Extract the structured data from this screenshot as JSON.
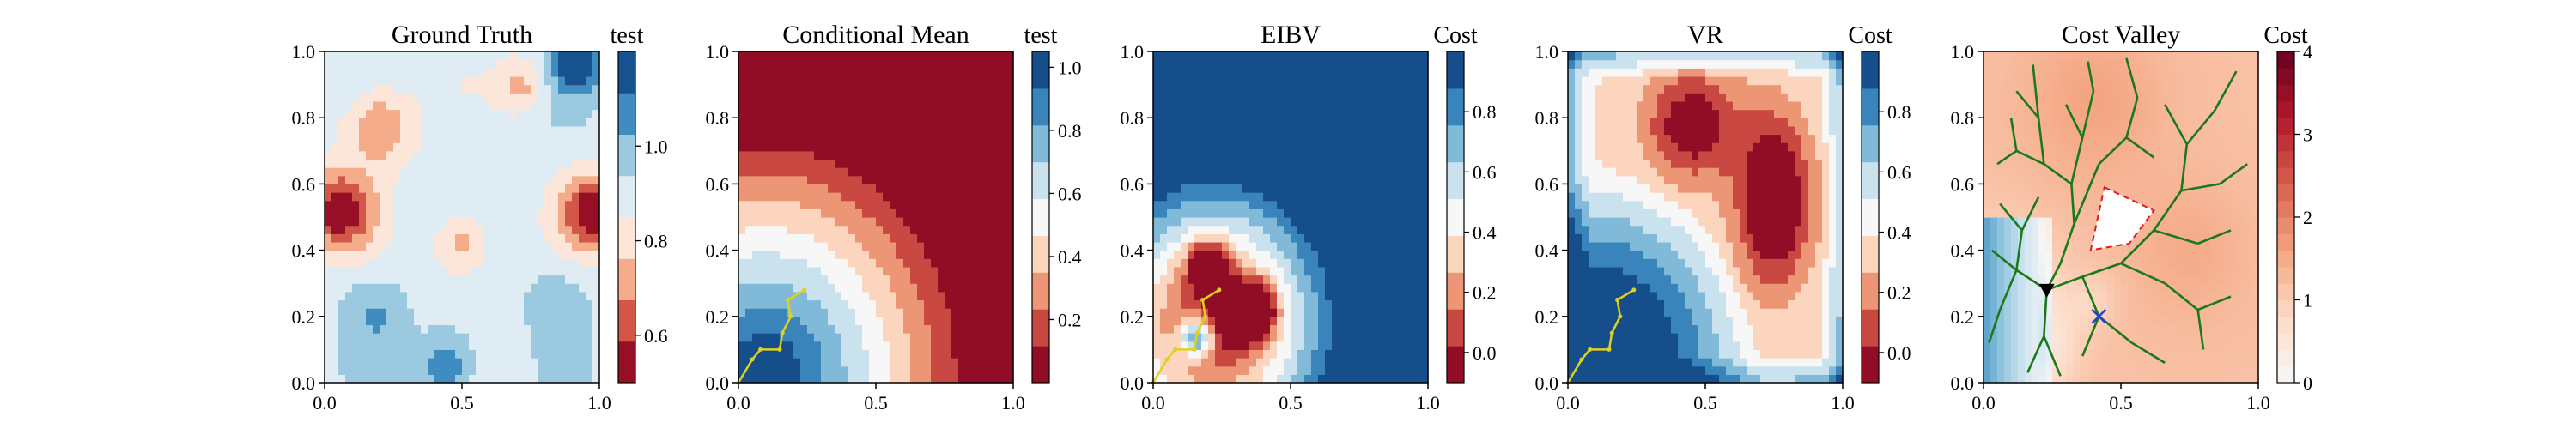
{
  "chart_data": [
    {
      "type": "heatmap",
      "title": "Ground Truth",
      "colorbar_label": "test",
      "colormap": "RdBu",
      "colorbar_ticks": [
        "0.6",
        "0.8",
        "1.0"
      ],
      "colorbar_ticks_values": [
        0.6,
        0.8,
        1.0
      ],
      "colorbar_range": [
        0.5,
        1.2
      ],
      "levels": 8,
      "xlim": [
        0.0,
        1.0
      ],
      "ylim": [
        0.0,
        1.0
      ],
      "xticks": [
        "0.0",
        "0.5",
        "1.0"
      ],
      "yticks": [
        "0.0",
        "0.2",
        "0.4",
        "0.6",
        "0.8",
        "1.0"
      ],
      "field": "ground_truth",
      "path": []
    },
    {
      "type": "heatmap",
      "title": "Conditional Mean",
      "colorbar_label": "test",
      "colormap": "RdBu",
      "colorbar_ticks": [
        "0.2",
        "0.4",
        "0.6",
        "0.8",
        "1.0"
      ],
      "colorbar_ticks_values": [
        0.2,
        0.4,
        0.6,
        0.8,
        1.0
      ],
      "colorbar_range": [
        0.0,
        1.05
      ],
      "levels": 9,
      "xlim": [
        0.0,
        1.0
      ],
      "ylim": [
        0.0,
        1.0
      ],
      "xticks": [
        "0.0",
        "0.5",
        "1.0"
      ],
      "yticks": [
        "0.0",
        "0.2",
        "0.4",
        "0.6",
        "0.8",
        "1.0"
      ],
      "field": "conditional_mean",
      "path": [
        [
          0.0,
          0.0
        ],
        [
          0.05,
          0.07
        ],
        [
          0.08,
          0.1
        ],
        [
          0.15,
          0.1
        ],
        [
          0.16,
          0.15
        ],
        [
          0.19,
          0.2
        ],
        [
          0.18,
          0.25
        ],
        [
          0.24,
          0.28
        ]
      ]
    },
    {
      "type": "heatmap",
      "title": "EIBV",
      "colorbar_label": "Cost",
      "colormap": "RdBu",
      "colorbar_ticks": [
        "0.0",
        "0.2",
        "0.4",
        "0.6",
        "0.8"
      ],
      "colorbar_ticks_values": [
        0.0,
        0.2,
        0.4,
        0.6,
        0.8
      ],
      "colorbar_range": [
        -0.1,
        1.0
      ],
      "levels": 9,
      "xlim": [
        0.0,
        1.0
      ],
      "ylim": [
        0.0,
        1.0
      ],
      "xticks": [
        "0.0",
        "0.5",
        "1.0"
      ],
      "yticks": [
        "0.0",
        "0.2",
        "0.4",
        "0.6",
        "0.8",
        "1.0"
      ],
      "field": "eibv",
      "path": [
        [
          0.0,
          0.0
        ],
        [
          0.05,
          0.07
        ],
        [
          0.08,
          0.1
        ],
        [
          0.15,
          0.1
        ],
        [
          0.16,
          0.15
        ],
        [
          0.19,
          0.2
        ],
        [
          0.18,
          0.25
        ],
        [
          0.24,
          0.28
        ]
      ]
    },
    {
      "type": "heatmap",
      "title": "VR",
      "colorbar_label": "Cost",
      "colormap": "RdBu",
      "colorbar_ticks": [
        "0.0",
        "0.2",
        "0.4",
        "0.6",
        "0.8"
      ],
      "colorbar_ticks_values": [
        0.0,
        0.2,
        0.4,
        0.6,
        0.8
      ],
      "colorbar_range": [
        -0.1,
        1.0
      ],
      "levels": 9,
      "xlim": [
        0.0,
        1.0
      ],
      "ylim": [
        0.0,
        1.0
      ],
      "xticks": [
        "0.0",
        "0.5",
        "1.0"
      ],
      "yticks": [
        "0.0",
        "0.2",
        "0.4",
        "0.6",
        "0.8",
        "1.0"
      ],
      "field": "vr",
      "path": [
        [
          0.0,
          0.0
        ],
        [
          0.05,
          0.07
        ],
        [
          0.08,
          0.1
        ],
        [
          0.15,
          0.1
        ],
        [
          0.16,
          0.15
        ],
        [
          0.19,
          0.2
        ],
        [
          0.18,
          0.25
        ],
        [
          0.24,
          0.28
        ]
      ]
    },
    {
      "type": "heatmap",
      "title": "Cost Valley",
      "colorbar_label": "Cost",
      "colormap": "RdBu",
      "colorbar_ticks": [
        "0",
        "1",
        "2",
        "3",
        "4"
      ],
      "colorbar_ticks_values": [
        0,
        1,
        2,
        3,
        4
      ],
      "colorbar_range": [
        0.0,
        4.0
      ],
      "levels": 20,
      "xlim": [
        0.0,
        1.0
      ],
      "ylim": [
        0.0,
        1.0
      ],
      "xticks": [
        "0.0",
        "0.5",
        "1.0"
      ],
      "yticks": [
        "0.0",
        "0.2",
        "0.4",
        "0.6",
        "0.8",
        "1.0"
      ],
      "field": "cost_valley",
      "current_location": [
        0.23,
        0.28
      ],
      "next_target": [
        0.42,
        0.2
      ],
      "obstacle_polygon": [
        [
          0.44,
          0.59
        ],
        [
          0.62,
          0.52
        ],
        [
          0.53,
          0.42
        ],
        [
          0.39,
          0.4
        ]
      ],
      "rrt_edges": [
        [
          [
            0.23,
            0.28
          ],
          [
            0.28,
            0.36
          ]
        ],
        [
          [
            0.28,
            0.36
          ],
          [
            0.33,
            0.48
          ]
        ],
        [
          [
            0.33,
            0.48
          ],
          [
            0.32,
            0.6
          ]
        ],
        [
          [
            0.32,
            0.6
          ],
          [
            0.22,
            0.66
          ]
        ],
        [
          [
            0.22,
            0.66
          ],
          [
            0.12,
            0.7
          ]
        ],
        [
          [
            0.12,
            0.7
          ],
          [
            0.05,
            0.66
          ]
        ],
        [
          [
            0.12,
            0.7
          ],
          [
            0.1,
            0.8
          ]
        ],
        [
          [
            0.22,
            0.66
          ],
          [
            0.2,
            0.8
          ]
        ],
        [
          [
            0.2,
            0.8
          ],
          [
            0.12,
            0.88
          ]
        ],
        [
          [
            0.2,
            0.8
          ],
          [
            0.18,
            0.96
          ]
        ],
        [
          [
            0.32,
            0.6
          ],
          [
            0.36,
            0.74
          ]
        ],
        [
          [
            0.36,
            0.74
          ],
          [
            0.3,
            0.84
          ]
        ],
        [
          [
            0.36,
            0.74
          ],
          [
            0.4,
            0.88
          ]
        ],
        [
          [
            0.4,
            0.88
          ],
          [
            0.38,
            0.97
          ]
        ],
        [
          [
            0.33,
            0.48
          ],
          [
            0.42,
            0.66
          ]
        ],
        [
          [
            0.42,
            0.66
          ],
          [
            0.52,
            0.74
          ]
        ],
        [
          [
            0.52,
            0.74
          ],
          [
            0.56,
            0.86
          ]
        ],
        [
          [
            0.56,
            0.86
          ],
          [
            0.52,
            0.98
          ]
        ],
        [
          [
            0.52,
            0.74
          ],
          [
            0.62,
            0.68
          ]
        ],
        [
          [
            0.23,
            0.28
          ],
          [
            0.36,
            0.32
          ]
        ],
        [
          [
            0.36,
            0.32
          ],
          [
            0.5,
            0.36
          ]
        ],
        [
          [
            0.5,
            0.36
          ],
          [
            0.62,
            0.46
          ]
        ],
        [
          [
            0.62,
            0.46
          ],
          [
            0.72,
            0.58
          ]
        ],
        [
          [
            0.72,
            0.58
          ],
          [
            0.74,
            0.72
          ]
        ],
        [
          [
            0.74,
            0.72
          ],
          [
            0.66,
            0.84
          ]
        ],
        [
          [
            0.74,
            0.72
          ],
          [
            0.84,
            0.82
          ]
        ],
        [
          [
            0.84,
            0.82
          ],
          [
            0.92,
            0.94
          ]
        ],
        [
          [
            0.72,
            0.58
          ],
          [
            0.86,
            0.6
          ]
        ],
        [
          [
            0.86,
            0.6
          ],
          [
            0.96,
            0.66
          ]
        ],
        [
          [
            0.62,
            0.46
          ],
          [
            0.78,
            0.42
          ]
        ],
        [
          [
            0.78,
            0.42
          ],
          [
            0.9,
            0.46
          ]
        ],
        [
          [
            0.5,
            0.36
          ],
          [
            0.66,
            0.3
          ]
        ],
        [
          [
            0.66,
            0.3
          ],
          [
            0.78,
            0.22
          ]
        ],
        [
          [
            0.78,
            0.22
          ],
          [
            0.9,
            0.26
          ]
        ],
        [
          [
            0.78,
            0.22
          ],
          [
            0.8,
            0.1
          ]
        ],
        [
          [
            0.36,
            0.32
          ],
          [
            0.42,
            0.2
          ]
        ],
        [
          [
            0.42,
            0.2
          ],
          [
            0.54,
            0.12
          ]
        ],
        [
          [
            0.54,
            0.12
          ],
          [
            0.66,
            0.06
          ]
        ],
        [
          [
            0.42,
            0.2
          ],
          [
            0.36,
            0.08
          ]
        ],
        [
          [
            0.23,
            0.28
          ],
          [
            0.22,
            0.14
          ]
        ],
        [
          [
            0.22,
            0.14
          ],
          [
            0.16,
            0.03
          ]
        ],
        [
          [
            0.22,
            0.14
          ],
          [
            0.28,
            0.02
          ]
        ],
        [
          [
            0.23,
            0.28
          ],
          [
            0.12,
            0.34
          ]
        ],
        [
          [
            0.12,
            0.34
          ],
          [
            0.03,
            0.4
          ]
        ],
        [
          [
            0.12,
            0.34
          ],
          [
            0.06,
            0.22
          ]
        ],
        [
          [
            0.06,
            0.22
          ],
          [
            0.02,
            0.12
          ]
        ],
        [
          [
            0.12,
            0.34
          ],
          [
            0.14,
            0.46
          ]
        ],
        [
          [
            0.14,
            0.46
          ],
          [
            0.06,
            0.54
          ]
        ],
        [
          [
            0.14,
            0.46
          ],
          [
            0.2,
            0.56
          ]
        ]
      ]
    }
  ]
}
